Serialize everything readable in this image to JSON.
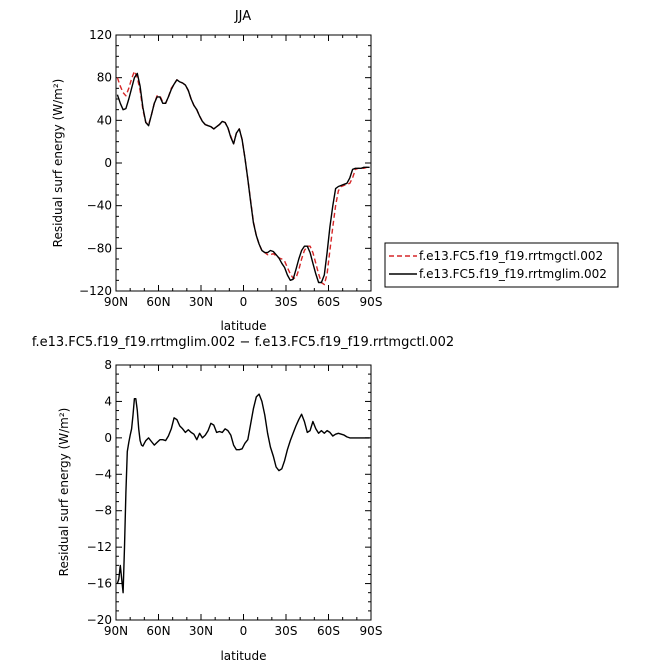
{
  "chart_data": [
    {
      "type": "line",
      "title": "JJA",
      "xlabel": "latitude",
      "ylabel": "Residual surf energy (W/m²)",
      "xlim": [
        90,
        -90
      ],
      "ylim": [
        -120,
        120
      ],
      "x_ticks": [
        90,
        60,
        30,
        0,
        -30,
        -60,
        -90
      ],
      "x_tick_labels": [
        "90N",
        "60N",
        "30N",
        "0",
        "30S",
        "60S",
        "90S"
      ],
      "y_ticks": [
        -120,
        -80,
        -40,
        0,
        40,
        80,
        120
      ],
      "y_tick_labels": [
        "−120",
        "−80",
        "−40",
        "0",
        "40",
        "80",
        "120"
      ],
      "legend_position": "right",
      "series": [
        {
          "name": "f.e13.FC5.f19_f19.rrtmgctl.002",
          "color": "#d62728",
          "dash": "dashed",
          "x": [
            89,
            87,
            85,
            83,
            81,
            79,
            77,
            75,
            73,
            71,
            69,
            67,
            65,
            63,
            61,
            59,
            57,
            55,
            53,
            51,
            49,
            47,
            45,
            43,
            41,
            39,
            37,
            35,
            33,
            31,
            29,
            27,
            25,
            23,
            21,
            19,
            17,
            15,
            13,
            11,
            9,
            7,
            5,
            3,
            1,
            -1,
            -3,
            -5,
            -7,
            -9,
            -11,
            -13,
            -15,
            -17,
            -19,
            -21,
            -23,
            -25,
            -27,
            -29,
            -31,
            -33,
            -35,
            -37,
            -39,
            -41,
            -43,
            -45,
            -47,
            -49,
            -51,
            -53,
            -55,
            -57,
            -59,
            -61,
            -63,
            -65,
            -67,
            -69,
            -71,
            -73,
            -75,
            -77,
            -79,
            -81,
            -83,
            -85,
            -87,
            -89
          ],
          "values": [
            80,
            72,
            66,
            63,
            70,
            79,
            86,
            80,
            68,
            50,
            38,
            36,
            45,
            56,
            63,
            63,
            57,
            56,
            62,
            70,
            74,
            78,
            76,
            75,
            73,
            68,
            60,
            54,
            50,
            44,
            39,
            36,
            35,
            34,
            32,
            34,
            36,
            39,
            38,
            33,
            25,
            18,
            28,
            32,
            22,
            5,
            -15,
            -35,
            -55,
            -68,
            -76,
            -82,
            -84,
            -86,
            -86,
            -85,
            -87,
            -89,
            -90,
            -92,
            -98,
            -104,
            -108,
            -108,
            -100,
            -90,
            -82,
            -78,
            -78,
            -84,
            -94,
            -104,
            -112,
            -114,
            -104,
            -82,
            -60,
            -40,
            -26,
            -22,
            -21,
            -20,
            -19,
            -14,
            -6,
            -5,
            -5,
            -5,
            -4,
            -4
          ]
        },
        {
          "name": "f.e13.FC5.f19_f19.rrtmglim.002",
          "color": "#000000",
          "dash": "solid",
          "x": [
            89,
            87,
            85,
            83,
            81,
            79,
            77,
            75,
            73,
            71,
            69,
            67,
            65,
            63,
            61,
            59,
            57,
            55,
            53,
            51,
            49,
            47,
            45,
            43,
            41,
            39,
            37,
            35,
            33,
            31,
            29,
            27,
            25,
            23,
            21,
            19,
            17,
            15,
            13,
            11,
            9,
            7,
            5,
            3,
            1,
            -1,
            -3,
            -5,
            -7,
            -9,
            -11,
            -13,
            -15,
            -17,
            -19,
            -21,
            -23,
            -25,
            -27,
            -29,
            -31,
            -33,
            -35,
            -37,
            -39,
            -41,
            -43,
            -45,
            -47,
            -49,
            -51,
            -53,
            -55,
            -57,
            -59,
            -61,
            -63,
            -65,
            -67,
            -69,
            -71,
            -73,
            -75,
            -77,
            -79,
            -81,
            -83,
            -85,
            -87,
            -89
          ],
          "values": [
            64,
            56,
            50,
            51,
            60,
            70,
            80,
            84,
            72,
            52,
            38,
            35,
            45,
            56,
            62,
            62,
            56,
            56,
            62,
            69,
            74,
            78,
            76,
            75,
            73,
            68,
            60,
            54,
            50,
            44,
            39,
            36,
            35,
            34,
            32,
            34,
            36,
            39,
            38,
            33,
            24,
            18,
            28,
            32,
            22,
            5,
            -15,
            -36,
            -56,
            -68,
            -76,
            -82,
            -84,
            -84,
            -82,
            -83,
            -86,
            -89,
            -94,
            -98,
            -105,
            -110,
            -109,
            -100,
            -90,
            -82,
            -78,
            -78,
            -84,
            -94,
            -104,
            -112,
            -112,
            -105,
            -84,
            -60,
            -40,
            -24,
            -22,
            -21,
            -20,
            -19,
            -14,
            -6,
            -5,
            -5,
            -5,
            -4,
            -4,
            -4
          ]
        }
      ]
    },
    {
      "type": "line",
      "title": "f.e13.FC5.f19_f19.rrtmglim.002 − f.e13.FC5.f19_f19.rrtmgctl.002",
      "xlabel": "latitude",
      "ylabel": "Residual surf energy (W/m²)",
      "xlim": [
        90,
        -90
      ],
      "ylim": [
        -20,
        8
      ],
      "x_ticks": [
        90,
        60,
        30,
        0,
        -30,
        -60,
        -90
      ],
      "x_tick_labels": [
        "90N",
        "60N",
        "30N",
        "0",
        "30S",
        "60S",
        "90S"
      ],
      "y_ticks": [
        -20,
        -16,
        -12,
        -8,
        -4,
        0,
        4,
        8
      ],
      "y_tick_labels": [
        "−20",
        "−16",
        "−12",
        "−8",
        "−4",
        "0",
        "4",
        "8"
      ],
      "series": [
        {
          "color": "#000000",
          "dash": "solid",
          "x": [
            89,
            88,
            87,
            86,
            85,
            84,
            83,
            82,
            81,
            80,
            79,
            78,
            77,
            76,
            75,
            74,
            73,
            72,
            71,
            70,
            69,
            67,
            65,
            63,
            61,
            59,
            57,
            55,
            53,
            51,
            49,
            47,
            45,
            43,
            41,
            39,
            37,
            35,
            33,
            31,
            29,
            27,
            25,
            23,
            21,
            19,
            17,
            15,
            13,
            11,
            9,
            7,
            5,
            3,
            1,
            -1,
            -3,
            -5,
            -7,
            -9,
            -11,
            -13,
            -15,
            -17,
            -19,
            -21,
            -23,
            -25,
            -27,
            -29,
            -31,
            -33,
            -35,
            -37,
            -39,
            -41,
            -43,
            -45,
            -47,
            -49,
            -51,
            -53,
            -55,
            -57,
            -59,
            -61,
            -63,
            -65,
            -67,
            -69,
            -71,
            -73,
            -75,
            -77,
            -79,
            -81,
            -83,
            -85,
            -87,
            -89
          ],
          "values": [
            -16,
            -15.5,
            -14,
            -15.5,
            -17,
            -12,
            -6,
            -1.5,
            -0.5,
            0.3,
            1,
            2.5,
            4.3,
            4.3,
            3,
            1,
            -0.3,
            -0.8,
            -0.9,
            -0.6,
            -0.3,
            0,
            -0.4,
            -0.8,
            -0.5,
            -0.2,
            -0.2,
            -0.3,
            0.2,
            1,
            2.2,
            2,
            1.3,
            1,
            0.6,
            0.9,
            0.6,
            0.4,
            -0.2,
            0.5,
            0,
            0.3,
            0.8,
            1.6,
            1.4,
            0.6,
            0.7,
            0.6,
            1,
            0.8,
            0.3,
            -0.8,
            -1.3,
            -1.3,
            -1.2,
            -0.6,
            -0.2,
            1.5,
            3.2,
            4.5,
            4.8,
            4,
            2.5,
            0.5,
            -1,
            -2,
            -3.2,
            -3.6,
            -3.4,
            -2.5,
            -1.3,
            -0.3,
            0.5,
            1.3,
            2,
            2.6,
            1.8,
            0.6,
            0.8,
            1.8,
            1,
            0.5,
            0.8,
            0.5,
            0.8,
            0.6,
            0.2,
            0.4,
            0.5,
            0.4,
            0.3,
            0.1,
            0,
            0,
            0,
            0,
            0,
            0,
            0,
            0
          ]
        }
      ]
    }
  ]
}
